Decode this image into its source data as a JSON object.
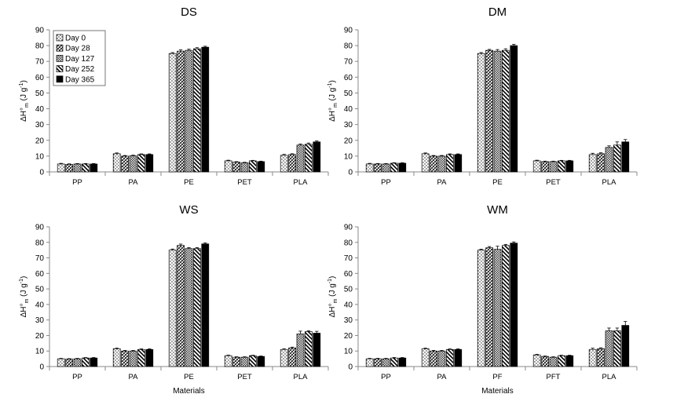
{
  "figure": {
    "series_names": [
      "Day 0",
      "Day 28",
      "Day 127",
      "Day 252",
      "Day 365"
    ],
    "ylabel_main": "ΔH°",
    "ylabel_sub": "m",
    "ylabel_unit": "(J g",
    "ylabel_exp": "-1",
    "ylabel_close": ")",
    "xlabel": "Materials"
  },
  "chart_data": [
    {
      "type": "bar",
      "title": "DS",
      "categories": [
        "PP",
        "PA",
        "PE",
        "PET",
        "PLA"
      ],
      "ylim": [
        0,
        90
      ],
      "yticks": [
        0,
        10,
        20,
        30,
        40,
        50,
        60,
        70,
        80,
        90
      ],
      "legend": "top-left",
      "series": [
        {
          "name": "Day 0",
          "pattern": "dots",
          "values": [
            5,
            11.5,
            75,
            7,
            10.5
          ],
          "errors": [
            0.4,
            0.5,
            0.6,
            0.4,
            0.6
          ]
        },
        {
          "name": "Day 28",
          "pattern": "cross",
          "values": [
            4.8,
            10,
            76.5,
            6.2,
            11
          ],
          "errors": [
            0.3,
            0.4,
            0.8,
            0.3,
            0.5
          ]
        },
        {
          "name": "Day 127",
          "pattern": "grid",
          "values": [
            5,
            10.2,
            77,
            5.8,
            17
          ],
          "errors": [
            0.3,
            0.4,
            0.7,
            0.3,
            0.6
          ]
        },
        {
          "name": "Day 252",
          "pattern": "diag",
          "values": [
            5,
            11,
            78,
            7,
            17.5
          ],
          "errors": [
            0.3,
            0.4,
            0.7,
            0.3,
            0.8
          ]
        },
        {
          "name": "Day 365",
          "pattern": "solid",
          "values": [
            5,
            11,
            79,
            6.5,
            19
          ],
          "errors": [
            0.3,
            0.4,
            0.6,
            0.3,
            0.6
          ]
        }
      ]
    },
    {
      "type": "bar",
      "title": "DM",
      "categories": [
        "PP",
        "PA",
        "PE",
        "PET",
        "PLA"
      ],
      "ylim": [
        0,
        90
      ],
      "yticks": [
        0,
        10,
        20,
        30,
        40,
        50,
        60,
        70,
        80,
        90
      ],
      "legend": "",
      "series": [
        {
          "name": "Day 0",
          "pattern": "dots",
          "values": [
            5,
            11.5,
            75,
            7,
            11
          ],
          "errors": [
            0.4,
            0.5,
            0.6,
            0.4,
            0.8
          ]
        },
        {
          "name": "Day 28",
          "pattern": "cross",
          "values": [
            5,
            10,
            77,
            6.5,
            11.5
          ],
          "errors": [
            0.3,
            0.4,
            0.6,
            0.3,
            0.6
          ]
        },
        {
          "name": "Day 127",
          "pattern": "grid",
          "values": [
            5,
            10,
            76.5,
            6.5,
            15.5
          ],
          "errors": [
            0.3,
            0.4,
            1.0,
            0.3,
            1.0
          ]
        },
        {
          "name": "Day 252",
          "pattern": "diag",
          "values": [
            5.5,
            11,
            77,
            7,
            17
          ],
          "errors": [
            0.3,
            0.4,
            1.0,
            0.3,
            2.0
          ]
        },
        {
          "name": "Day 365",
          "pattern": "solid",
          "values": [
            5.5,
            11,
            80,
            7,
            19
          ],
          "errors": [
            0.3,
            0.4,
            0.8,
            0.3,
            1.5
          ]
        }
      ]
    },
    {
      "type": "bar",
      "title": "WS",
      "categories": [
        "PP",
        "PA",
        "PE",
        "PET",
        "PLA"
      ],
      "ylim": [
        0,
        90
      ],
      "yticks": [
        0,
        10,
        20,
        30,
        40,
        50,
        60,
        70,
        80,
        90
      ],
      "legend": "",
      "series": [
        {
          "name": "Day 0",
          "pattern": "dots",
          "values": [
            5,
            11.5,
            75,
            7,
            11
          ],
          "errors": [
            0.3,
            0.4,
            0.7,
            0.4,
            0.5
          ]
        },
        {
          "name": "Day 28",
          "pattern": "cross",
          "values": [
            4.8,
            10,
            78,
            6,
            12
          ],
          "errors": [
            0.3,
            0.4,
            0.9,
            0.3,
            0.5
          ]
        },
        {
          "name": "Day 127",
          "pattern": "grid",
          "values": [
            5,
            10,
            76,
            6,
            21
          ],
          "errors": [
            0.3,
            0.4,
            0.6,
            0.3,
            1.8
          ]
        },
        {
          "name": "Day 252",
          "pattern": "diag",
          "values": [
            5.5,
            11,
            76,
            7,
            22.5
          ],
          "errors": [
            0.3,
            0.4,
            0.6,
            0.3,
            0.6
          ]
        },
        {
          "name": "Day 365",
          "pattern": "solid",
          "values": [
            5.5,
            11,
            79,
            6.5,
            21.5
          ],
          "errors": [
            0.3,
            0.4,
            0.6,
            0.3,
            1.2
          ]
        }
      ]
    },
    {
      "type": "bar",
      "title": "WM",
      "categories": [
        "PP",
        "PA",
        "PF",
        "PFT",
        "PLA"
      ],
      "ylim": [
        0,
        90
      ],
      "yticks": [
        0,
        10,
        20,
        30,
        40,
        50,
        60,
        70,
        80,
        90
      ],
      "legend": "",
      "series": [
        {
          "name": "Day 0",
          "pattern": "dots",
          "values": [
            5,
            11.5,
            75,
            7.5,
            11
          ],
          "errors": [
            0.3,
            0.4,
            0.6,
            0.4,
            0.8
          ]
        },
        {
          "name": "Day 28",
          "pattern": "cross",
          "values": [
            5,
            10,
            76.5,
            6.5,
            11.5
          ],
          "errors": [
            0.3,
            0.4,
            0.8,
            0.3,
            0.6
          ]
        },
        {
          "name": "Day 127",
          "pattern": "grid",
          "values": [
            5,
            10,
            75.5,
            6,
            23
          ],
          "errors": [
            0.3,
            0.4,
            2.0,
            0.3,
            1.8
          ]
        },
        {
          "name": "Day 252",
          "pattern": "diag",
          "values": [
            5.5,
            11,
            78,
            7,
            23
          ],
          "errors": [
            0.3,
            0.4,
            0.7,
            0.3,
            1.8
          ]
        },
        {
          "name": "Day 365",
          "pattern": "solid",
          "values": [
            5.5,
            11,
            79.5,
            7,
            26.5
          ],
          "errors": [
            0.3,
            0.4,
            0.8,
            0.3,
            2.5
          ]
        }
      ]
    }
  ]
}
